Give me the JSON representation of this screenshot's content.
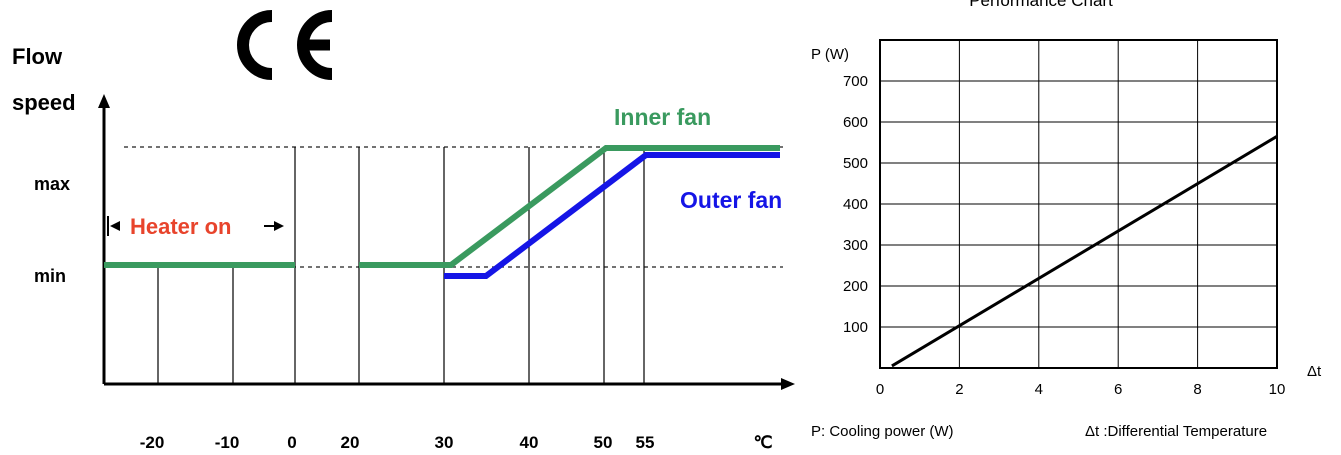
{
  "left_chart": {
    "ce_mark": "CE",
    "y_title_line1": "Flow",
    "y_title_line2": "speed",
    "y_levels": [
      "max",
      "min"
    ],
    "heater_label": "Heater on",
    "unit": "℃",
    "colors": {
      "inner": "#3a9a5f",
      "outer": "#1515e6",
      "heater": "#e8442c"
    }
  },
  "chart_data": [
    {
      "type": "line",
      "categories": [
        "-20",
        "-10",
        "0",
        "20",
        "30",
        "40",
        "50",
        "55"
      ],
      "y_levels": [
        "min",
        "max"
      ],
      "series": [
        {
          "name": "Inner fan",
          "segments": [
            [
              [
                -25,
                "min"
              ],
              [
                0,
                "min"
              ]
            ],
            [
              [
                20,
                "min"
              ],
              [
                30,
                "min"
              ],
              [
                50,
                "max"
              ],
              [
                60,
                "max"
              ]
            ]
          ]
        },
        {
          "name": "Outer fan",
          "segments": [
            [
              [
                30,
                "below min"
              ],
              [
                35,
                "below min"
              ],
              [
                55,
                "below max"
              ],
              [
                60,
                "below max"
              ]
            ]
          ]
        }
      ]
    },
    {
      "type": "line",
      "title": "Performance Chart",
      "xlabel": "Δt",
      "ylabel": "P (W)",
      "xlim": [
        0,
        10
      ],
      "ylim": [
        0,
        800
      ],
      "x_ticks": [
        0,
        2,
        4,
        6,
        8,
        10
      ],
      "y_ticks": [
        100,
        200,
        300,
        400,
        500,
        600,
        700
      ],
      "grid": true,
      "series": [
        {
          "name": "",
          "x": [
            0.3,
            10
          ],
          "y": [
            5,
            565
          ]
        }
      ],
      "footnote_left": "P: Cooling power (W)",
      "footnote_right": "Δt :Differential Temperature"
    }
  ]
}
